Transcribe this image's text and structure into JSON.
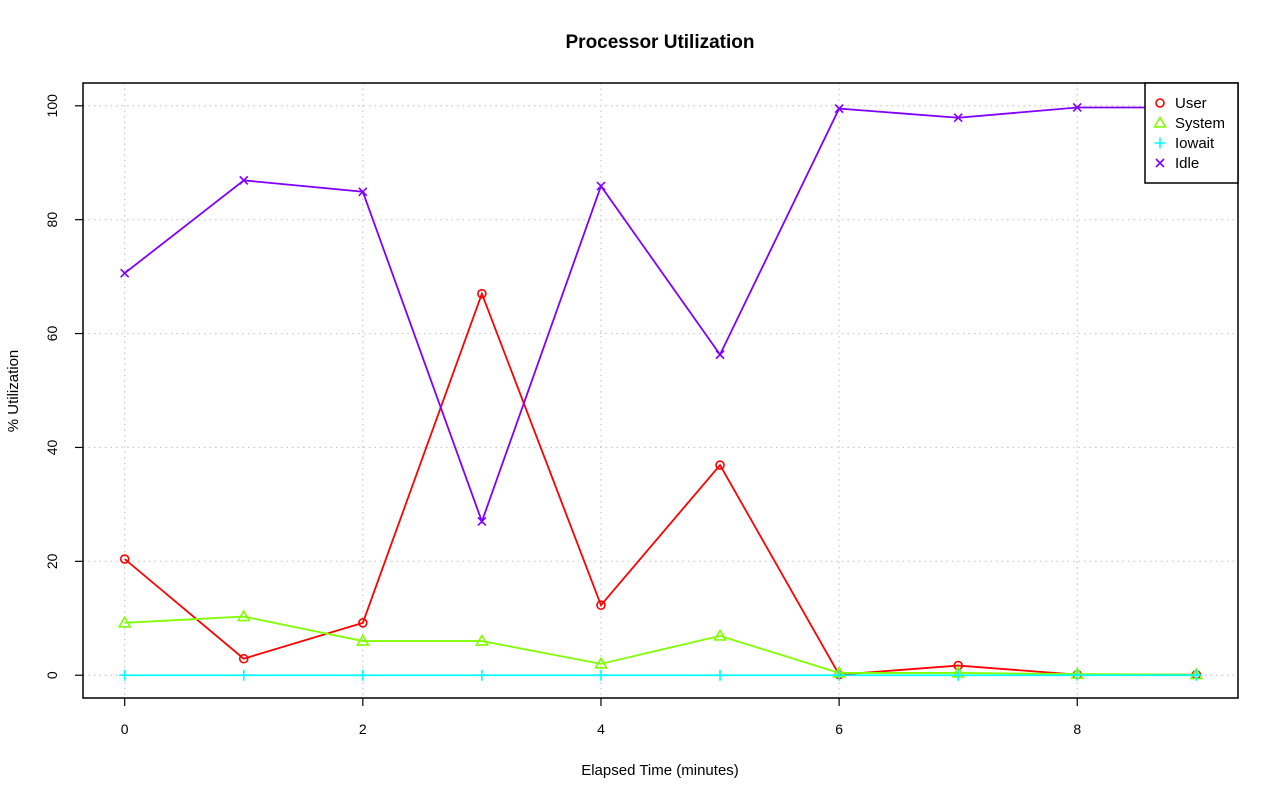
{
  "chart_data": {
    "type": "line",
    "title": "Processor Utilization",
    "xlabel": "Elapsed Time (minutes)",
    "ylabel": "% Utilization",
    "xlim": [
      -0.35,
      9.35
    ],
    "ylim": [
      -4,
      104
    ],
    "x_ticks": [
      0,
      2,
      4,
      6,
      8
    ],
    "y_ticks": [
      0,
      20,
      40,
      60,
      80,
      100
    ],
    "grid": true,
    "legend_position": "top-right",
    "x": [
      0,
      1,
      2,
      3,
      4,
      5,
      6,
      7,
      8,
      9
    ],
    "series": [
      {
        "name": "User",
        "color": "#ff0000",
        "marker": "circle",
        "values": [
          20.4,
          2.9,
          9.2,
          67.0,
          12.3,
          36.9,
          0.1,
          1.7,
          0.1,
          0.1
        ]
      },
      {
        "name": "System",
        "color": "#80ff00",
        "marker": "triangle",
        "values": [
          9.2,
          10.3,
          6.0,
          6.0,
          2.0,
          6.9,
          0.4,
          0.4,
          0.2,
          0.1
        ]
      },
      {
        "name": "Iowait",
        "color": "#00ffff",
        "marker": "plus",
        "values": [
          0,
          0,
          0,
          0,
          0,
          0,
          0,
          0,
          0,
          0
        ]
      },
      {
        "name": "Idle",
        "color": "#8000ff",
        "marker": "cross",
        "values": [
          70.6,
          86.9,
          84.9,
          27.0,
          85.9,
          56.3,
          99.5,
          97.9,
          99.7,
          99.7
        ]
      }
    ]
  }
}
